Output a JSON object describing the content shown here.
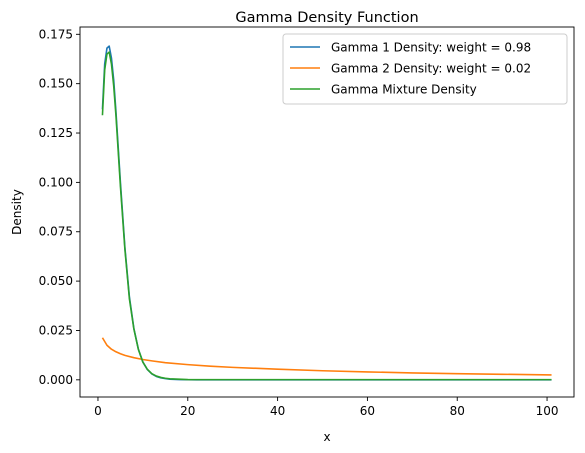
{
  "chart_data": {
    "type": "line",
    "title": "Gamma Density Function",
    "xlabel": "x",
    "ylabel": "Density",
    "xlim": [
      -4,
      106
    ],
    "ylim": [
      -0.0087,
      0.1787
    ],
    "xticks": [
      0,
      20,
      40,
      60,
      80,
      100
    ],
    "yticks": [
      0.0,
      0.025,
      0.05,
      0.075,
      0.1,
      0.125,
      0.15,
      0.175
    ],
    "ytick_labels": [
      "0.000",
      "0.025",
      "0.050",
      "0.075",
      "0.100",
      "0.125",
      "0.150",
      "0.175"
    ],
    "grid": false,
    "legend_position": "top-right",
    "series": [
      {
        "name": "Gamma 1 Density: weight = 0.98",
        "color": "#1f77b4",
        "x": [
          1,
          1.5,
          2,
          2.5,
          3,
          3.5,
          4,
          5,
          6,
          7,
          8,
          9,
          10,
          11,
          12,
          13,
          14,
          15,
          16,
          18,
          20,
          22,
          25,
          30,
          40,
          50,
          60,
          70,
          80,
          90,
          101
        ],
        "y": [
          0.137,
          0.16,
          0.168,
          0.169,
          0.163,
          0.152,
          0.136,
          0.1,
          0.067,
          0.042,
          0.026,
          0.0155,
          0.009,
          0.0052,
          0.003,
          0.0017,
          0.001,
          0.0006,
          0.0003,
          0.0001,
          4e-05,
          1e-05,
          0,
          0,
          0,
          0,
          0,
          0,
          0,
          0,
          0
        ]
      },
      {
        "name": "Gamma 2 Density: weight = 0.02",
        "color": "#ff7f0e",
        "x": [
          1,
          2,
          3,
          4,
          5,
          6,
          8,
          10,
          12,
          15,
          20,
          25,
          30,
          40,
          50,
          60,
          70,
          80,
          90,
          101
        ],
        "y": [
          0.0213,
          0.0175,
          0.0155,
          0.0142,
          0.0132,
          0.0124,
          0.0112,
          0.0103,
          0.0096,
          0.0087,
          0.0077,
          0.0069,
          0.0063,
          0.0054,
          0.0046,
          0.004,
          0.0035,
          0.0031,
          0.0028,
          0.0025
        ]
      },
      {
        "name": "Gamma Mixture Density",
        "color": "#2ca02c",
        "x": [
          1,
          1.5,
          2,
          2.5,
          3,
          3.5,
          4,
          5,
          6,
          7,
          8,
          9,
          10,
          11,
          12,
          13,
          14,
          15,
          16,
          18,
          20,
          22,
          25,
          30,
          40,
          50,
          60,
          70,
          80,
          90,
          101
        ],
        "y": [
          0.134,
          0.157,
          0.165,
          0.166,
          0.16,
          0.149,
          0.134,
          0.098,
          0.066,
          0.041,
          0.0257,
          0.0154,
          0.009,
          0.0053,
          0.0031,
          0.0019,
          0.0012,
          0.0008,
          0.0005,
          0.0003,
          0.00015,
          0.0001,
          0.0001,
          0.0001,
          0.0001,
          0.0001,
          0.0001,
          0.0001,
          0.0001,
          0.0001,
          0.0001
        ]
      }
    ]
  }
}
